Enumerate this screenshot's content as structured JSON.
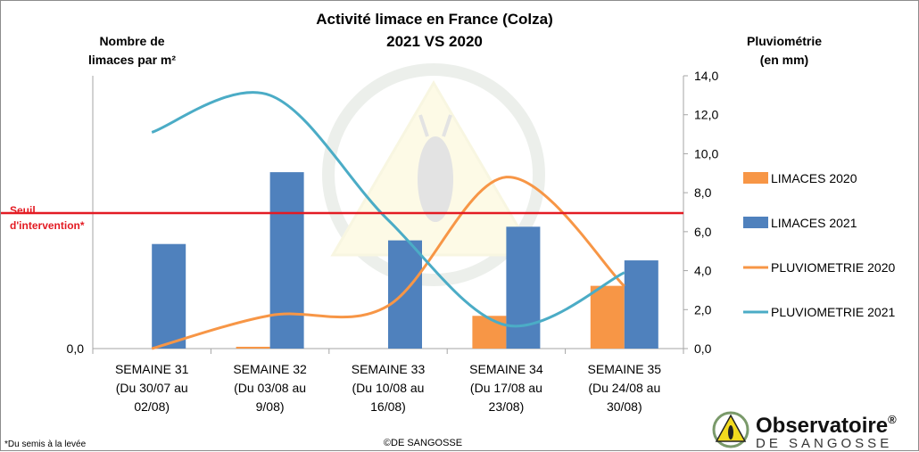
{
  "chart_data": {
    "type": "bar",
    "title_line1": "Activité limace en France (Colza)",
    "title_line2": "2021 VS 2020",
    "ylabel_left_line1": "Nombre de",
    "ylabel_left_line2": "limaces par m²",
    "ylabel_right_line1": "Pluviométrie",
    "ylabel_right_line2": "(en mm)",
    "left_axis": {
      "min_label": "0,0",
      "ylim": [
        0,
        30
      ]
    },
    "right_axis": {
      "ylim": [
        0,
        14
      ],
      "ticks": [
        "0,0",
        "2,0",
        "4,0",
        "6,0",
        "8,0",
        "10,0",
        "12,0",
        "14,0"
      ]
    },
    "categories": [
      {
        "line1": "SEMAINE 31",
        "line2": "(Du 30/07 au",
        "line3": "02/08)"
      },
      {
        "line1": "SEMAINE 32",
        "line2": "(Du 03/08 au",
        "line3": "9/08)"
      },
      {
        "line1": "SEMAINE 33",
        "line2": "(Du 10/08 au",
        "line3": "16/08)"
      },
      {
        "line1": "SEMAINE 34",
        "line2": "(Du 17/08 au",
        "line3": "23/08)"
      },
      {
        "line1": "SEMAINE 35",
        "line2": "(Du 24/08 au",
        "line3": "30/08)"
      }
    ],
    "series": [
      {
        "name": "LIMACES 2020",
        "kind": "bar",
        "axis": "left",
        "color": "#f79646",
        "values": [
          0,
          0.2,
          0,
          3.6,
          6.9
        ]
      },
      {
        "name": "LIMACES 2021",
        "kind": "bar",
        "axis": "left",
        "color": "#4f81bd",
        "values": [
          11.5,
          19.4,
          11.9,
          13.4,
          9.7
        ]
      },
      {
        "name": "PLUVIOMETRIE 2020",
        "kind": "line",
        "axis": "right",
        "color": "#f79646",
        "values": [
          0.0,
          1.7,
          2.2,
          8.8,
          3.2
        ]
      },
      {
        "name": "PLUVIOMETRIE 2021",
        "kind": "line",
        "axis": "right",
        "color": "#4bacc6",
        "values": [
          11.1,
          13.0,
          6.6,
          1.2,
          3.9
        ]
      }
    ],
    "threshold": {
      "label_line1": "Seuil",
      "label_line2": "d'intervention*",
      "value": 14.9,
      "color": "#e31b23"
    }
  },
  "footnote": "Du semis à la levée",
  "footnote_mark": "*",
  "copyright": "©DE SANGOSSE",
  "logo": {
    "name": "Observatoire",
    "sup": "®",
    "sub": "DE SANGOSSE"
  }
}
